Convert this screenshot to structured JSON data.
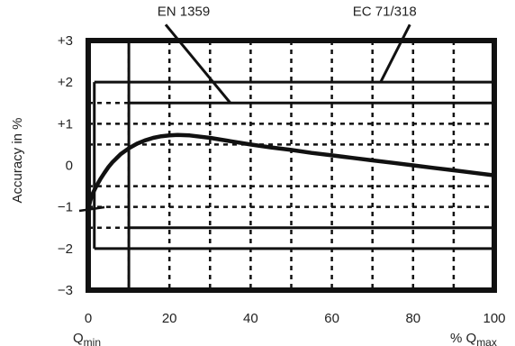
{
  "chart_data": {
    "type": "line",
    "ylabel": "Accuracy in %",
    "xlabel": "% Q_max",
    "xlim": [
      0,
      100
    ],
    "ylim": [
      -3,
      3
    ],
    "x_ticks": [
      {
        "v": 0,
        "label": "0"
      },
      {
        "v": 20,
        "label": "20"
      },
      {
        "v": 40,
        "label": "40"
      },
      {
        "v": 60,
        "label": "60"
      },
      {
        "v": 80,
        "label": "80"
      },
      {
        "v": 100,
        "label": "100"
      }
    ],
    "y_ticks": [
      {
        "v": 3,
        "label": "+3"
      },
      {
        "v": 2,
        "label": "+2"
      },
      {
        "v": 1,
        "label": "+1"
      },
      {
        "v": 0,
        "label": "0"
      },
      {
        "v": -1,
        "label": "−1"
      },
      {
        "v": -2,
        "label": "−2"
      },
      {
        "v": -3,
        "label": "−3"
      }
    ],
    "x_sublabels": {
      "qmin": {
        "base": "Q",
        "sub": "min"
      },
      "qmax": {
        "prefix": "% Q",
        "sub": "max"
      }
    },
    "grid": true,
    "grid_x": [
      10,
      20,
      30,
      40,
      50,
      60,
      70,
      80,
      90
    ],
    "grid_y": [
      1.5,
      1,
      0.5,
      -0.5,
      -1,
      -1.5
    ],
    "curve": {
      "x": [
        0,
        0.5,
        1,
        2,
        3,
        4,
        5,
        6,
        8,
        10,
        12,
        14,
        16,
        18,
        20,
        22,
        25,
        30,
        35,
        40,
        45,
        50,
        55,
        60,
        65,
        70,
        75,
        80,
        85,
        90,
        95,
        100
      ],
      "y": [
        -1.05,
        -0.85,
        -0.7,
        -0.5,
        -0.33,
        -0.18,
        -0.04,
        0.08,
        0.27,
        0.41,
        0.52,
        0.6,
        0.66,
        0.7,
        0.72,
        0.73,
        0.72,
        0.66,
        0.58,
        0.5,
        0.43,
        0.37,
        0.3,
        0.24,
        0.18,
        0.12,
        0.06,
        0.0,
        -0.06,
        -0.12,
        -0.18,
        -0.24
      ]
    },
    "limit_lines": [
      {
        "name": "EC 71/318",
        "segments": [
          {
            "x": [
              1.5,
              100
            ],
            "y": [
              2,
              2
            ]
          },
          {
            "x": [
              1.5,
              100
            ],
            "y": [
              -2,
              -2
            ]
          },
          {
            "x": [
              1.5,
              1.5
            ],
            "y": [
              -2,
              2
            ]
          }
        ]
      },
      {
        "name": "EN 1359",
        "segments": [
          {
            "x": [
              10,
              100
            ],
            "y": [
              1.5,
              1.5
            ]
          },
          {
            "x": [
              10,
              100
            ],
            "y": [
              -1.5,
              -1.5
            ]
          },
          {
            "x": [
              10,
              10
            ],
            "y": [
              -3,
              3
            ]
          }
        ]
      }
    ],
    "annotations": [
      {
        "text": "EN 1359",
        "x": 23.5,
        "y": 3.6,
        "arrow_to": [
          35,
          1.5
        ]
      },
      {
        "text": "EC 71/318",
        "x": 73,
        "y": 3.6,
        "arrow_to": [
          72,
          2.0
        ]
      }
    ],
    "colors": {
      "ink": "#111111",
      "text": "#222222",
      "background": "#ffffff"
    }
  }
}
